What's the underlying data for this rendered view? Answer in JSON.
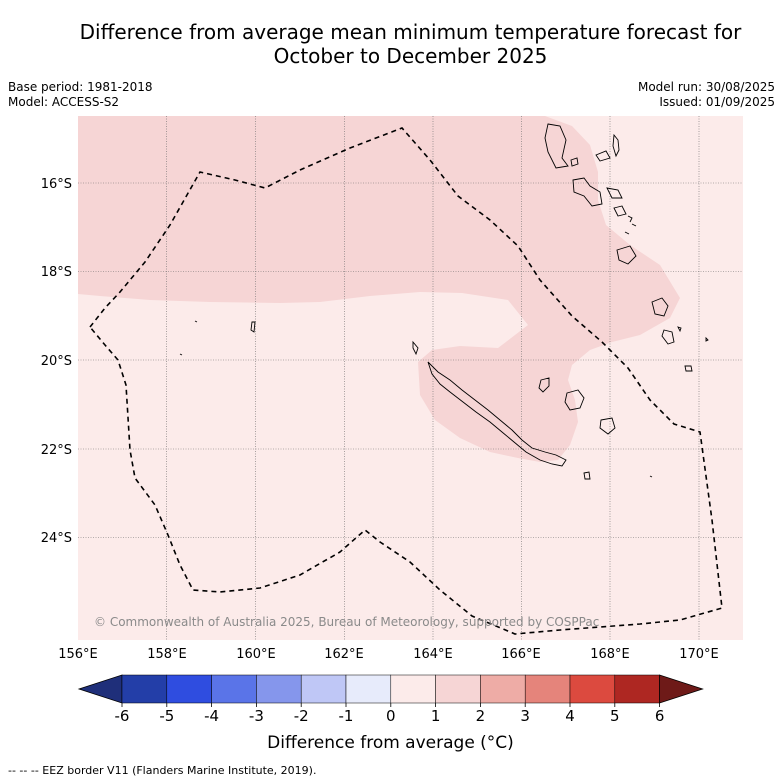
{
  "title": {
    "line1": "Difference from average mean minimum temperature forecast for",
    "line2": "October to December 2025"
  },
  "meta": {
    "base_period": "Base period: 1981-2018",
    "model": "Model: ACCESS-S2",
    "model_run": "Model run: 30/08/2025",
    "issued": "Issued: 01/09/2025"
  },
  "map": {
    "lon_range": [
      156,
      171
    ],
    "lat_range": [
      -26.0,
      -14.6
    ],
    "lat_ticks": [
      "16°S",
      "18°S",
      "20°S",
      "22°S",
      "24°S"
    ],
    "lon_ticks": [
      "156°E",
      "158°E",
      "160°E",
      "162°E",
      "164°E",
      "166°E",
      "168°E",
      "170°E"
    ],
    "background_category": "0 to 1",
    "shaded_category": "1 to 2",
    "copyright": "© Commonwealth of Australia 2025, Bureau of Meteorology, supported by COSPPac"
  },
  "colorbar": {
    "ticks": [
      "-6",
      "-5",
      "-4",
      "-3",
      "-2",
      "-1",
      "0",
      "1",
      "2",
      "3",
      "4",
      "5",
      "6"
    ],
    "colors": [
      "#1f2f7a",
      "#233ea8",
      "#2f4de0",
      "#5a74e8",
      "#8596ec",
      "#bfc7f6",
      "#e7ebfb",
      "#fcebea",
      "#f6d5d5",
      "#eeaca6",
      "#e5847b",
      "#dc4a3f",
      "#ae2722",
      "#6e1a18"
    ],
    "label": "Difference from average (°C)"
  },
  "footnote": "-- -- -- EEZ border V11 (Flanders Marine Institute, 2019)."
}
